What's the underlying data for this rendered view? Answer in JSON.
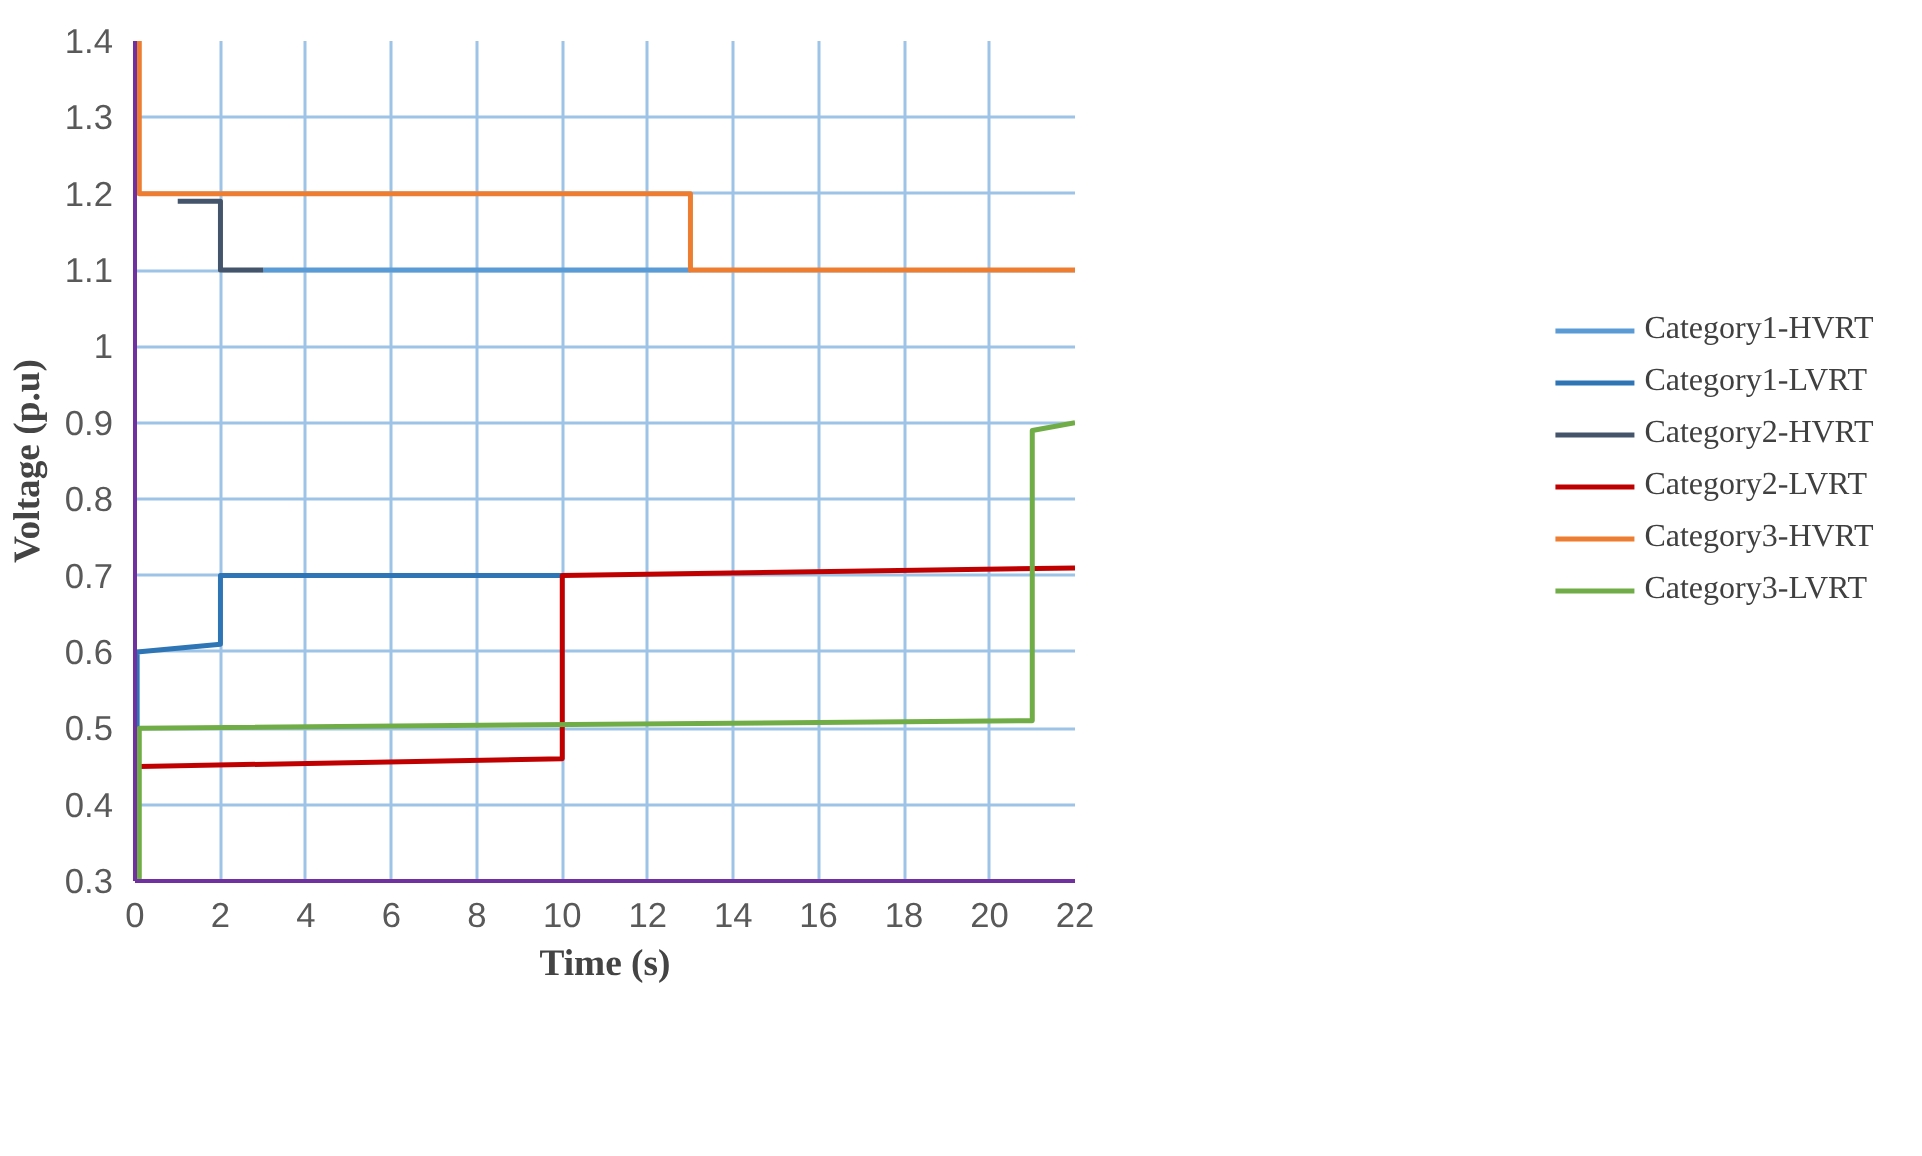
{
  "chart_data": {
    "type": "line",
    "xlabel": "Time (s)",
    "ylabel": "Voltage (p.u)",
    "xlim": [
      0,
      22
    ],
    "xticks": [
      0,
      2,
      4,
      6,
      8,
      10,
      12,
      14,
      16,
      18,
      20,
      22
    ],
    "ylim": [
      0.3,
      1.4
    ],
    "yticks": [
      0.3,
      0.4,
      0.5,
      0.6,
      0.7,
      0.8,
      0.9,
      {
        "value": 1,
        "label": "1"
      },
      1.1,
      1.2,
      1.3,
      1.4
    ],
    "grid": true,
    "legend": "right",
    "marker": "none",
    "line_style": "solid",
    "series": [
      {
        "name": "Category1-HVRT",
        "color": "#5b9bd5",
        "x": [
          3,
          13
        ],
        "values": [
          1.1,
          1.1
        ]
      },
      {
        "name": "Category1-LVRT",
        "color": "#2e75b6",
        "x": [
          0.05,
          0.05,
          2,
          2,
          10
        ],
        "values": [
          0.5,
          0.6,
          0.61,
          0.7,
          0.7
        ]
      },
      {
        "name": "Category2-HVRT",
        "color": "#44546a",
        "x": [
          1,
          2,
          2,
          3
        ],
        "values": [
          1.19,
          1.19,
          1.1,
          1.1
        ]
      },
      {
        "name": "Category2-LVRT",
        "color": "#c00000",
        "x": [
          0.1,
          10,
          10,
          22
        ],
        "values": [
          0.45,
          0.46,
          0.7,
          0.71
        ]
      },
      {
        "name": "Category3-HVRT",
        "color": "#ed7d31",
        "x": [
          0.1,
          0.1,
          13,
          13,
          22
        ],
        "values": [
          1.4,
          1.2,
          1.2,
          1.1,
          1.1
        ]
      },
      {
        "name": "Category3-LVRT",
        "color": "#70ad47",
        "x": [
          0.1,
          0.1,
          21,
          21,
          22
        ],
        "values": [
          0.3,
          0.5,
          0.51,
          0.89,
          0.9
        ]
      }
    ]
  }
}
